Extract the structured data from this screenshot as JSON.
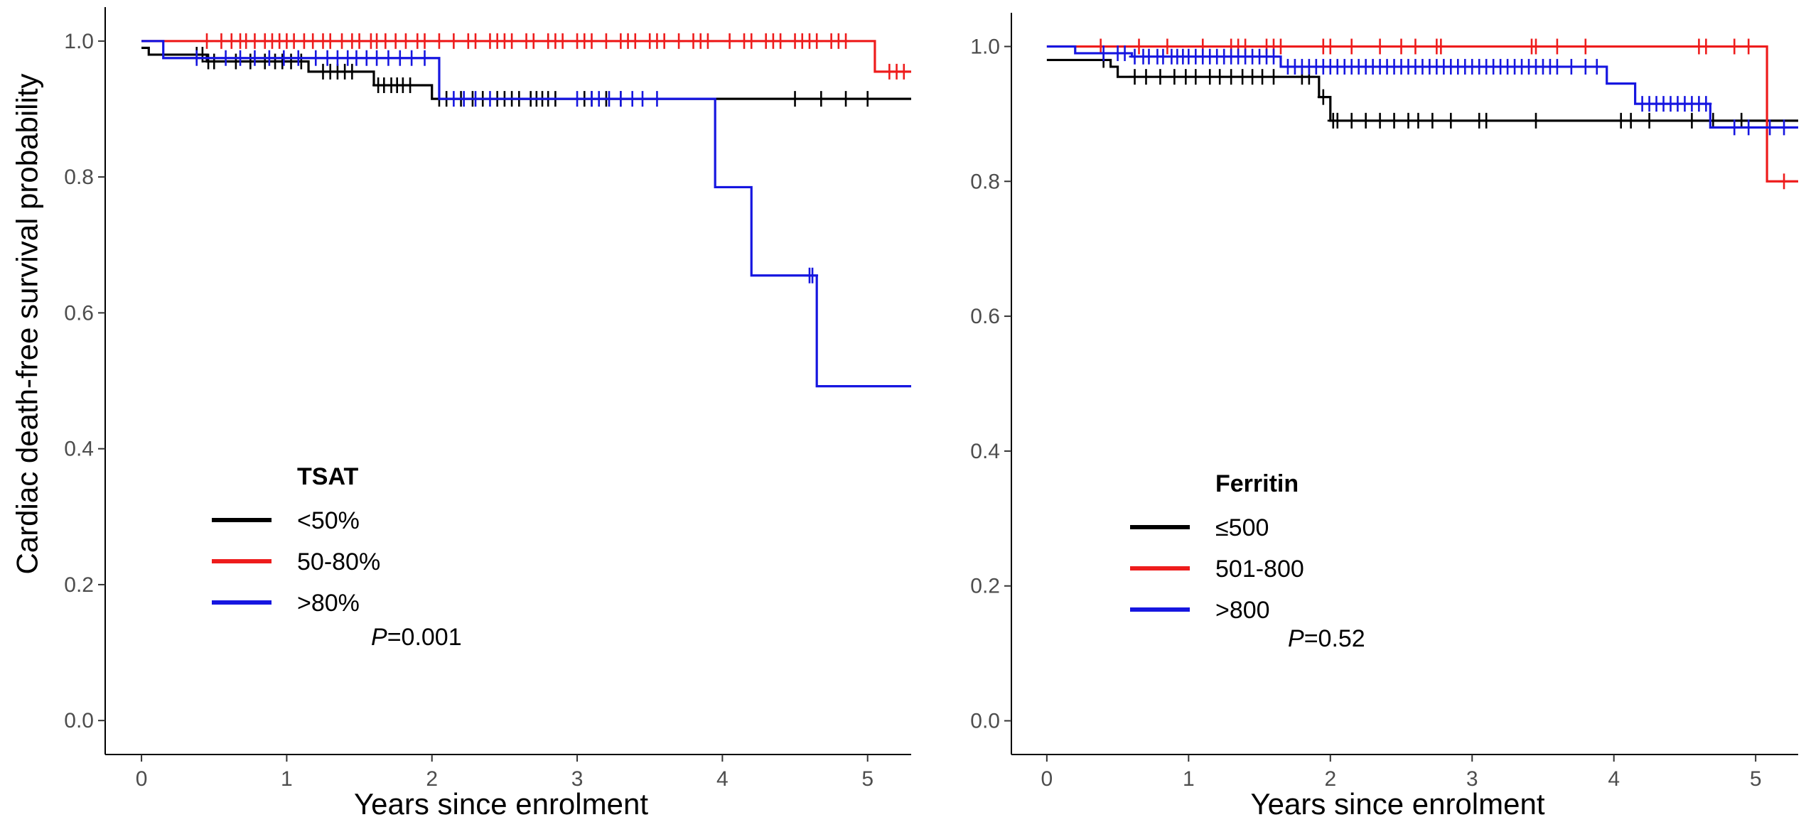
{
  "chart_data": [
    {
      "type": "line",
      "subtype": "kaplan-meier",
      "xlabel": "Years since enrolment",
      "ylabel": "Cardiac death-free survival probability",
      "xlim": [
        -0.25,
        5.3
      ],
      "ylim": [
        -0.05,
        1.05
      ],
      "xticks": [
        0,
        1,
        2,
        3,
        4,
        5
      ],
      "yticks": [
        0.0,
        0.2,
        0.4,
        0.6,
        0.8,
        1.0
      ],
      "ytick_labels": [
        "0.0",
        "0.2",
        "0.4",
        "0.6",
        "0.8",
        "1.0"
      ],
      "grid": false,
      "legend": {
        "title": "TSAT",
        "placement": "lower-left"
      },
      "annotation": {
        "p_label": "P",
        "p_value": "=0.001"
      },
      "series": [
        {
          "name": "<50%",
          "color": "#000000",
          "steps": [
            [
              0,
              0.99
            ],
            [
              0.05,
              0.98
            ],
            [
              0.45,
              0.97
            ],
            [
              1.15,
              0.955
            ],
            [
              1.6,
              0.935
            ],
            [
              2.0,
              0.915
            ],
            [
              5.3,
              0.915
            ]
          ],
          "censors": [
            0.38,
            0.42,
            0.46,
            0.5,
            0.65,
            0.75,
            0.85,
            0.92,
            0.97,
            1.03,
            1.1,
            1.25,
            1.3,
            1.35,
            1.4,
            1.45,
            1.63,
            1.67,
            1.72,
            1.76,
            1.8,
            1.85,
            2.05,
            2.1,
            2.2,
            2.28,
            2.35,
            2.45,
            2.5,
            2.55,
            2.6,
            2.68,
            2.72,
            2.76,
            2.8,
            2.85,
            3.05,
            3.1,
            3.2,
            3.3,
            4.5,
            4.68,
            4.85,
            5.0
          ]
        },
        {
          "name": "50-80%",
          "color": "#ee1c1c",
          "steps": [
            [
              0,
              1.0
            ],
            [
              5.05,
              0.955
            ],
            [
              5.3,
              0.955
            ]
          ],
          "censors": [
            0.45,
            0.55,
            0.62,
            0.68,
            0.72,
            0.78,
            0.85,
            0.9,
            0.95,
            1.0,
            1.05,
            1.12,
            1.18,
            1.25,
            1.3,
            1.38,
            1.45,
            1.5,
            1.58,
            1.62,
            1.68,
            1.75,
            1.82,
            1.9,
            1.95,
            2.05,
            2.15,
            2.25,
            2.3,
            2.4,
            2.45,
            2.5,
            2.55,
            2.65,
            2.7,
            2.8,
            2.85,
            2.9,
            3.0,
            3.05,
            3.1,
            3.2,
            3.3,
            3.35,
            3.4,
            3.5,
            3.55,
            3.6,
            3.7,
            3.8,
            3.85,
            3.9,
            4.05,
            4.15,
            4.2,
            4.3,
            4.35,
            4.4,
            4.5,
            4.55,
            4.6,
            4.65,
            4.75,
            4.8,
            4.85,
            5.15,
            5.2,
            5.25
          ]
        },
        {
          "name": ">80%",
          "color": "#1616e0",
          "steps": [
            [
              0,
              1.0
            ],
            [
              0.15,
              0.975
            ],
            [
              2.05,
              0.915
            ],
            [
              3.95,
              0.785
            ],
            [
              4.2,
              0.655
            ],
            [
              4.65,
              0.492
            ],
            [
              5.3,
              0.492
            ]
          ],
          "censors": [
            0.38,
            0.58,
            0.68,
            0.78,
            0.88,
            0.98,
            1.08,
            1.2,
            1.28,
            1.35,
            1.42,
            1.48,
            1.55,
            1.62,
            1.7,
            1.78,
            1.86,
            1.95,
            2.15,
            2.22,
            2.3,
            2.4,
            3.0,
            3.1,
            3.15,
            3.22,
            3.3,
            3.38,
            3.45,
            3.55,
            4.6,
            4.62
          ]
        }
      ]
    },
    {
      "type": "line",
      "subtype": "kaplan-meier",
      "xlabel": "Years since enrolment",
      "ylabel": "",
      "xlim": [
        -0.25,
        5.3
      ],
      "ylim": [
        -0.05,
        1.05
      ],
      "xticks": [
        0,
        1,
        2,
        3,
        4,
        5
      ],
      "yticks": [
        0.0,
        0.2,
        0.4,
        0.6,
        0.8,
        1.0
      ],
      "ytick_labels": [
        "0.0",
        "0.2",
        "0.4",
        "0.6",
        "0.8",
        "1.0"
      ],
      "grid": false,
      "legend": {
        "title": "Ferritin",
        "placement": "lower-left"
      },
      "annotation": {
        "p_label": "P",
        "p_value": "=0.52"
      },
      "series": [
        {
          "name": "≤500",
          "color": "#000000",
          "steps": [
            [
              0,
              0.98
            ],
            [
              0.45,
              0.97
            ],
            [
              0.5,
              0.955
            ],
            [
              1.92,
              0.925
            ],
            [
              2.0,
              0.89
            ],
            [
              5.3,
              0.89
            ]
          ],
          "censors": [
            0.4,
            0.62,
            0.7,
            0.8,
            0.9,
            0.98,
            1.05,
            1.15,
            1.22,
            1.3,
            1.38,
            1.45,
            1.52,
            1.6,
            1.8,
            1.85,
            1.95,
            2.02,
            2.05,
            2.15,
            2.25,
            2.35,
            2.45,
            2.55,
            2.62,
            2.72,
            2.85,
            3.05,
            3.1,
            3.45,
            4.05,
            4.12,
            4.25,
            4.55,
            4.7,
            4.9
          ]
        },
        {
          "name": "501-800",
          "color": "#ee1c1c",
          "steps": [
            [
              0,
              1.0
            ],
            [
              5.08,
              0.8
            ],
            [
              5.3,
              0.8
            ]
          ],
          "censors": [
            0.38,
            0.65,
            0.85,
            1.1,
            1.3,
            1.35,
            1.4,
            1.55,
            1.6,
            1.65,
            1.95,
            2.0,
            2.15,
            2.35,
            2.5,
            2.6,
            2.75,
            2.78,
            3.42,
            3.45,
            3.6,
            3.8,
            4.6,
            4.65,
            4.85,
            4.95,
            5.2
          ]
        },
        {
          "name": ">800",
          "color": "#1616e0",
          "steps": [
            [
              0,
              1.0
            ],
            [
              0.2,
              0.99
            ],
            [
              0.6,
              0.985
            ],
            [
              1.65,
              0.97
            ],
            [
              3.95,
              0.945
            ],
            [
              4.15,
              0.915
            ],
            [
              4.68,
              0.88
            ],
            [
              5.3,
              0.88
            ]
          ],
          "censors": [
            0.4,
            0.5,
            0.55,
            0.62,
            0.68,
            0.72,
            0.78,
            0.82,
            0.88,
            0.92,
            0.96,
            1.0,
            1.05,
            1.1,
            1.15,
            1.2,
            1.25,
            1.3,
            1.35,
            1.4,
            1.45,
            1.5,
            1.55,
            1.6,
            1.7,
            1.75,
            1.8,
            1.85,
            1.9,
            1.95,
            2.0,
            2.05,
            2.1,
            2.15,
            2.2,
            2.25,
            2.3,
            2.35,
            2.4,
            2.45,
            2.5,
            2.55,
            2.6,
            2.65,
            2.7,
            2.75,
            2.8,
            2.85,
            2.9,
            2.95,
            3.0,
            3.05,
            3.1,
            3.15,
            3.2,
            3.25,
            3.3,
            3.35,
            3.4,
            3.45,
            3.5,
            3.55,
            3.6,
            3.7,
            3.8,
            3.88,
            4.2,
            4.25,
            4.3,
            4.35,
            4.4,
            4.45,
            4.5,
            4.55,
            4.6,
            4.65,
            4.85,
            4.95,
            5.1,
            5.2
          ]
        }
      ]
    }
  ]
}
